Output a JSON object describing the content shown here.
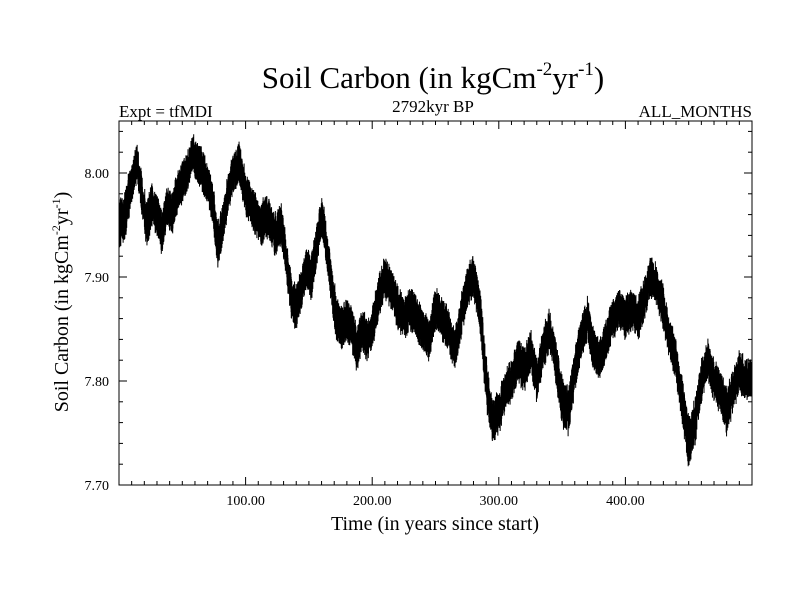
{
  "chart_data": {
    "type": "line",
    "title": {
      "main": "Soil Carbon (in kgCm",
      "sup1": "-2",
      "mid": "yr",
      "sup2": "-1",
      "end": ")"
    },
    "expt_label": "Expt = tfMDI",
    "subtitle": "2792kyr BP",
    "season_label": "ALL_MONTHS",
    "xlabel": "Time (in years since start)",
    "ylabel": {
      "main": "Soil Carbon (in kgCm",
      "sup1": "-2",
      "mid": "yr",
      "sup2": "-1",
      "end": ")"
    },
    "xlim": [
      0,
      500
    ],
    "ylim": [
      7.7,
      8.05
    ],
    "x_major_ticks": [
      100,
      200,
      300,
      400
    ],
    "x_tick_labels": [
      "100.00",
      "200.00",
      "300.00",
      "400.00"
    ],
    "x_minor_step": 10,
    "y_major_ticks": [
      7.7,
      7.8,
      7.9,
      8.0
    ],
    "y_tick_labels": [
      "7.70",
      "7.80",
      "7.90",
      "8.00"
    ],
    "y_minor_step": 0.02,
    "series": [
      {
        "name": "Soil Carbon",
        "color": "#000000",
        "envelope_x": [
          0,
          5,
          10,
          14,
          18,
          22,
          26,
          30,
          34,
          38,
          42,
          46,
          50,
          54,
          58,
          62,
          66,
          70,
          74,
          78,
          82,
          86,
          90,
          95,
          100,
          104,
          108,
          112,
          116,
          120,
          124,
          128,
          132,
          136,
          140,
          144,
          148,
          152,
          156,
          160,
          164,
          168,
          172,
          176,
          180,
          184,
          188,
          192,
          196,
          200,
          205,
          210,
          215,
          220,
          225,
          230,
          235,
          240,
          245,
          250,
          255,
          260,
          265,
          270,
          275,
          280,
          285,
          290,
          295,
          300,
          305,
          310,
          315,
          320,
          325,
          330,
          335,
          340,
          345,
          350,
          355,
          360,
          365,
          370,
          375,
          380,
          385,
          390,
          395,
          400,
          405,
          410,
          415,
          420,
          425,
          430,
          435,
          440,
          445,
          450,
          455,
          460,
          465,
          470,
          475,
          480,
          485,
          490,
          495,
          500
        ],
        "envelope_mean": [
          7.95,
          7.96,
          7.99,
          8.01,
          7.98,
          7.95,
          7.97,
          7.96,
          7.94,
          7.97,
          7.96,
          7.98,
          7.99,
          8.0,
          8.02,
          8.01,
          8.0,
          7.99,
          7.97,
          7.93,
          7.95,
          7.98,
          8.0,
          8.01,
          7.98,
          7.97,
          7.96,
          7.95,
          7.96,
          7.95,
          7.94,
          7.95,
          7.92,
          7.88,
          7.87,
          7.89,
          7.91,
          7.9,
          7.93,
          7.96,
          7.93,
          7.89,
          7.86,
          7.85,
          7.86,
          7.85,
          7.83,
          7.85,
          7.84,
          7.85,
          7.88,
          7.9,
          7.89,
          7.87,
          7.86,
          7.87,
          7.86,
          7.85,
          7.84,
          7.87,
          7.86,
          7.85,
          7.83,
          7.86,
          7.89,
          7.9,
          7.87,
          7.8,
          7.76,
          7.77,
          7.79,
          7.8,
          7.82,
          7.81,
          7.83,
          7.8,
          7.83,
          7.85,
          7.82,
          7.78,
          7.77,
          7.81,
          7.84,
          7.86,
          7.83,
          7.82,
          7.84,
          7.86,
          7.87,
          7.86,
          7.87,
          7.86,
          7.88,
          7.9,
          7.89,
          7.87,
          7.84,
          7.82,
          7.78,
          7.74,
          7.76,
          7.8,
          7.82,
          7.8,
          7.79,
          7.77,
          7.79,
          7.81,
          7.8,
          7.8
        ],
        "envelope_halfwidth": [
          0.02,
          0.025,
          0.02,
          0.018,
          0.02,
          0.022,
          0.02,
          0.02,
          0.022,
          0.02,
          0.02,
          0.02,
          0.02,
          0.02,
          0.018,
          0.02,
          0.022,
          0.02,
          0.02,
          0.025,
          0.02,
          0.02,
          0.018,
          0.02,
          0.02,
          0.02,
          0.02,
          0.02,
          0.02,
          0.02,
          0.02,
          0.02,
          0.02,
          0.022,
          0.02,
          0.02,
          0.02,
          0.022,
          0.02,
          0.02,
          0.02,
          0.02,
          0.022,
          0.02,
          0.02,
          0.02,
          0.022,
          0.02,
          0.02,
          0.02,
          0.02,
          0.02,
          0.02,
          0.02,
          0.02,
          0.02,
          0.02,
          0.02,
          0.02,
          0.02,
          0.02,
          0.02,
          0.02,
          0.02,
          0.02,
          0.02,
          0.02,
          0.025,
          0.022,
          0.02,
          0.02,
          0.02,
          0.02,
          0.02,
          0.02,
          0.02,
          0.02,
          0.02,
          0.02,
          0.025,
          0.022,
          0.02,
          0.02,
          0.02,
          0.02,
          0.02,
          0.02,
          0.02,
          0.02,
          0.02,
          0.02,
          0.02,
          0.02,
          0.02,
          0.02,
          0.02,
          0.02,
          0.02,
          0.022,
          0.025,
          0.022,
          0.02,
          0.02,
          0.02,
          0.02,
          0.022,
          0.02,
          0.02,
          0.02,
          0.02
        ]
      }
    ]
  }
}
